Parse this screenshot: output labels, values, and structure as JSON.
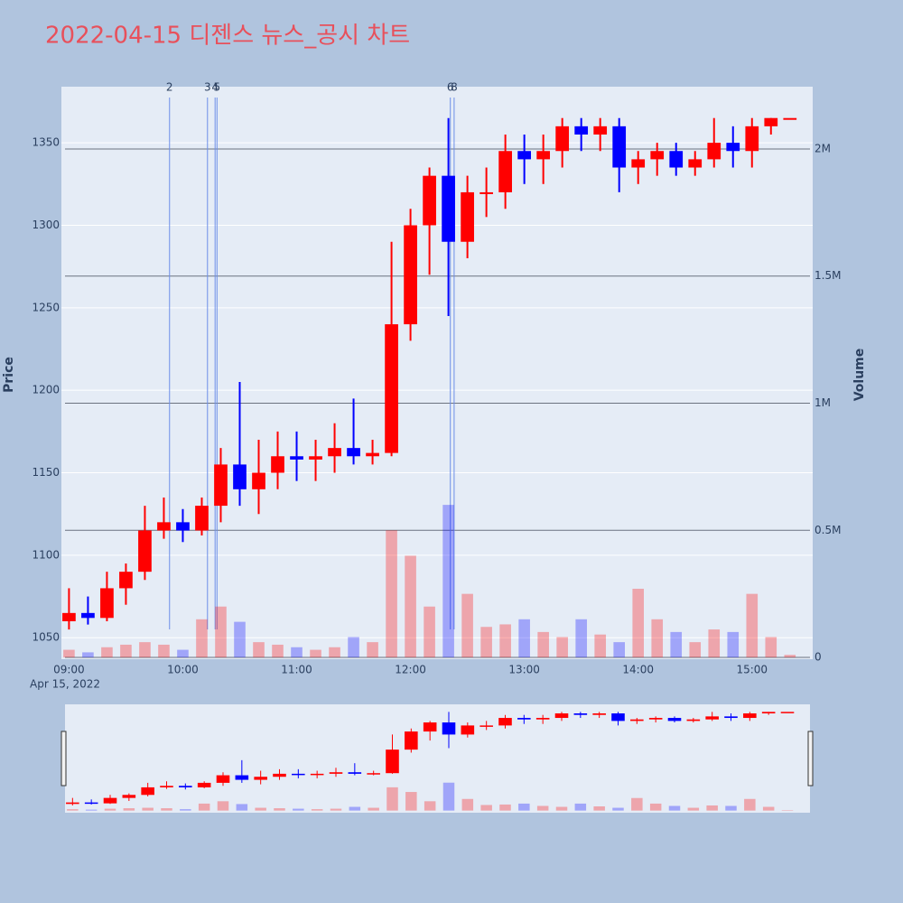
{
  "chart_data": {
    "type": "candlestick",
    "title": "2022-04-15 디젠스 뉴스_공시 차트",
    "x": [
      "2022-04-15 09:00",
      "2022-04-15 09:10",
      "2022-04-15 09:20",
      "2022-04-15 09:30",
      "2022-04-15 09:40",
      "2022-04-15 09:50",
      "2022-04-15 10:00",
      "2022-04-15 10:10",
      "2022-04-15 10:20",
      "2022-04-15 10:30",
      "2022-04-15 10:40",
      "2022-04-15 10:50",
      "2022-04-15 11:00",
      "2022-04-15 11:10",
      "2022-04-15 11:20",
      "2022-04-15 11:30",
      "2022-04-15 11:40",
      "2022-04-15 11:50",
      "2022-04-15 12:00",
      "2022-04-15 12:10",
      "2022-04-15 12:20",
      "2022-04-15 12:30",
      "2022-04-15 12:40",
      "2022-04-15 12:50",
      "2022-04-15 13:00",
      "2022-04-15 13:10",
      "2022-04-15 13:20",
      "2022-04-15 13:30",
      "2022-04-15 13:40",
      "2022-04-15 13:50",
      "2022-04-15 14:00",
      "2022-04-15 14:10",
      "2022-04-15 14:20",
      "2022-04-15 14:30",
      "2022-04-15 14:40",
      "2022-04-15 14:50",
      "2022-04-15 15:00",
      "2022-04-15 15:10",
      "2022-04-15 15:20"
    ],
    "open": [
      1060,
      1065,
      1062,
      1080,
      1090,
      1115,
      1120,
      1115,
      1130,
      1155,
      1140,
      1150,
      1160,
      1158,
      1160,
      1165,
      1160,
      1162,
      1240,
      1300,
      1330,
      1290,
      1320,
      1320,
      1345,
      1340,
      1345,
      1360,
      1355,
      1360,
      1335,
      1340,
      1345,
      1335,
      1340,
      1350,
      1345,
      1360,
      1365
    ],
    "high": [
      1080,
      1075,
      1090,
      1095,
      1130,
      1135,
      1128,
      1135,
      1165,
      1205,
      1170,
      1175,
      1175,
      1170,
      1180,
      1195,
      1170,
      1290,
      1310,
      1335,
      1365,
      1330,
      1335,
      1355,
      1355,
      1355,
      1365,
      1365,
      1365,
      1365,
      1345,
      1350,
      1350,
      1345,
      1365,
      1360,
      1365,
      1365,
      1365
    ],
    "low": [
      1055,
      1058,
      1060,
      1070,
      1085,
      1110,
      1108,
      1112,
      1120,
      1130,
      1125,
      1140,
      1145,
      1145,
      1150,
      1155,
      1155,
      1160,
      1230,
      1270,
      1245,
      1280,
      1305,
      1310,
      1325,
      1325,
      1335,
      1345,
      1345,
      1320,
      1325,
      1330,
      1330,
      1330,
      1335,
      1335,
      1335,
      1355,
      1365
    ],
    "close": [
      1065,
      1062,
      1080,
      1090,
      1115,
      1120,
      1115,
      1130,
      1155,
      1140,
      1150,
      1160,
      1158,
      1160,
      1165,
      1160,
      1162,
      1240,
      1300,
      1330,
      1290,
      1320,
      1320,
      1345,
      1340,
      1345,
      1360,
      1355,
      1360,
      1335,
      1340,
      1345,
      1335,
      1340,
      1350,
      1345,
      1360,
      1365,
      1365
    ],
    "volume": [
      30000,
      20000,
      40000,
      50000,
      60000,
      50000,
      30000,
      150000,
      200000,
      140000,
      60000,
      50000,
      40000,
      30000,
      40000,
      80000,
      60000,
      500000,
      400000,
      200000,
      600000,
      250000,
      120000,
      130000,
      150000,
      100000,
      80000,
      150000,
      90000,
      60000,
      270000,
      150000,
      100000,
      60000,
      110000,
      100000,
      250000,
      80000,
      10000
    ],
    "up_color": "#ff0000",
    "down_color": "#0000ff",
    "ylabel": "Price",
    "y2label": "Volume",
    "ylim": [
      1037,
      1384
    ],
    "yticks": [
      1050,
      1100,
      1150,
      1200,
      1250,
      1300,
      1350
    ],
    "y2lim": [
      -7000,
      2245000
    ],
    "y2ticks": [
      0,
      {
        "value": 500000,
        "label": "0.5M"
      },
      {
        "value": 1000000,
        "label": "1M"
      },
      {
        "value": 1500000,
        "label": "1.5M"
      },
      {
        "value": 2000000,
        "label": "2M"
      }
    ],
    "xlim": [
      "2022-04-15 08:56",
      "2022-04-15 15:32"
    ],
    "xticks": [
      {
        "value": "2022-04-15 09:00",
        "label": "09:00"
      },
      {
        "value": "2022-04-15 10:00",
        "label": "10:00"
      },
      {
        "value": "2022-04-15 11:00",
        "label": "11:00"
      },
      {
        "value": "2022-04-15 12:00",
        "label": "12:00"
      },
      {
        "value": "2022-04-15 13:00",
        "label": "13:00"
      },
      {
        "value": "2022-04-15 14:00",
        "label": "14:00"
      },
      {
        "value": "2022-04-15 15:00",
        "label": "15:00"
      }
    ],
    "x_date_label": "Apr 15, 2022",
    "events": [
      {
        "x": "2022-04-15 09:53",
        "label": "2"
      },
      {
        "x": "2022-04-15 10:13",
        "label": "3"
      },
      {
        "x": "2022-04-15 10:17",
        "label": "4"
      },
      {
        "x": "2022-04-15 10:18",
        "label": "5"
      },
      {
        "x": "2022-04-15 12:21",
        "label": "6"
      },
      {
        "x": "2022-04-15 12:23",
        "label": "8"
      }
    ],
    "grid": true,
    "rangeslider": true
  }
}
